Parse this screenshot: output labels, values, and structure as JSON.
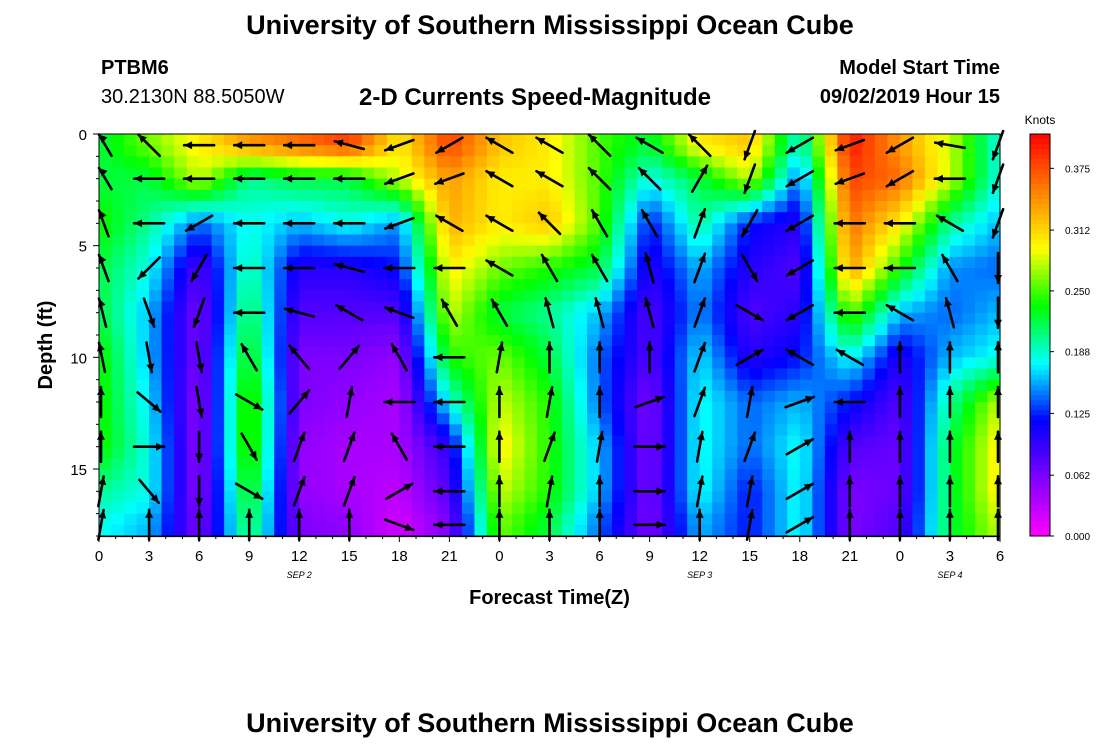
{
  "header": {
    "title_top": "University of Southern Mississippi Ocean Cube",
    "title_bottom": "University of Southern Mississippi Ocean Cube",
    "station_id": "PTBM6",
    "station_location": "30.2130N 88.5050W",
    "chart_title": "2-D Currents Speed-Magnitude",
    "model_start_label": "Model Start Time",
    "model_start_value": "09/02/2019 Hour 15"
  },
  "chart_data": {
    "type": "heatmap",
    "title": "2-D Currents Speed-Magnitude",
    "xlabel": "Forecast Time(Z)",
    "ylabel": "Depth (ft)",
    "x_tick_labels": [
      "0",
      "3",
      "6",
      "9",
      "12",
      "15",
      "18",
      "21",
      "0",
      "3",
      "6",
      "9",
      "12",
      "15",
      "18",
      "21",
      "0",
      "3",
      "6"
    ],
    "x_range_hours": [
      0,
      54
    ],
    "date_labels": [
      {
        "text": "SEP 2",
        "hour": 12
      },
      {
        "text": "SEP 3",
        "hour": 36
      },
      {
        "text": "SEP 4",
        "hour": 51
      }
    ],
    "y_ticks": [
      0,
      5,
      10,
      15
    ],
    "y_range": [
      0,
      18
    ],
    "y_inverted": true,
    "colorbar": {
      "label": "Knots",
      "ticks": [
        0.0,
        0.062,
        0.125,
        0.188,
        0.25,
        0.312,
        0.375
      ],
      "tick_labels": [
        "0.000",
        "0.062",
        "0.125",
        "0.188",
        "0.250",
        "0.312",
        "0.375"
      ],
      "range": [
        0.0,
        0.41
      ],
      "colors": [
        "#ff00ff",
        "#8000ff",
        "#0000ff",
        "#00ffff",
        "#00ff00",
        "#ffff00",
        "#ff8000",
        "#ff0000"
      ]
    },
    "depth_levels": [
      0.5,
      2,
      4,
      6,
      8,
      10,
      12,
      14,
      16,
      17.5
    ],
    "time_steps_hours": [
      0,
      3,
      6,
      9,
      12,
      15,
      18,
      21,
      24,
      27,
      30,
      33,
      36,
      39,
      42,
      45,
      48,
      51,
      54
    ],
    "speed_knots": [
      [
        0.22,
        0.26,
        0.3,
        0.34,
        0.36,
        0.38,
        0.3,
        0.38,
        0.32,
        0.3,
        0.25,
        0.22,
        0.3,
        0.32,
        0.18,
        0.4,
        0.34,
        0.28,
        0.18
      ],
      [
        0.22,
        0.22,
        0.28,
        0.2,
        0.22,
        0.22,
        0.28,
        0.34,
        0.3,
        0.3,
        0.25,
        0.18,
        0.22,
        0.28,
        0.14,
        0.38,
        0.36,
        0.28,
        0.18
      ],
      [
        0.24,
        0.2,
        0.14,
        0.18,
        0.16,
        0.18,
        0.15,
        0.33,
        0.3,
        0.32,
        0.25,
        0.12,
        0.2,
        0.12,
        0.1,
        0.36,
        0.3,
        0.2,
        0.16
      ],
      [
        0.22,
        0.18,
        0.08,
        0.2,
        0.1,
        0.1,
        0.12,
        0.3,
        0.26,
        0.24,
        0.22,
        0.1,
        0.16,
        0.1,
        0.08,
        0.34,
        0.24,
        0.15,
        0.14
      ],
      [
        0.22,
        0.16,
        0.06,
        0.22,
        0.08,
        0.08,
        0.08,
        0.28,
        0.22,
        0.2,
        0.16,
        0.08,
        0.15,
        0.08,
        0.1,
        0.26,
        0.16,
        0.14,
        0.16
      ],
      [
        0.24,
        0.16,
        0.06,
        0.24,
        0.06,
        0.06,
        0.05,
        0.24,
        0.26,
        0.22,
        0.14,
        0.08,
        0.17,
        0.1,
        0.12,
        0.18,
        0.1,
        0.16,
        0.18
      ],
      [
        0.24,
        0.17,
        0.05,
        0.26,
        0.06,
        0.05,
        0.04,
        0.18,
        0.28,
        0.24,
        0.14,
        0.06,
        0.18,
        0.14,
        0.16,
        0.12,
        0.08,
        0.2,
        0.28
      ],
      [
        0.24,
        0.18,
        0.05,
        0.26,
        0.05,
        0.04,
        0.04,
        0.1,
        0.3,
        0.24,
        0.16,
        0.06,
        0.18,
        0.14,
        0.18,
        0.08,
        0.07,
        0.22,
        0.3
      ],
      [
        0.2,
        0.18,
        0.05,
        0.24,
        0.05,
        0.04,
        0.03,
        0.08,
        0.28,
        0.24,
        0.16,
        0.06,
        0.18,
        0.12,
        0.18,
        0.06,
        0.07,
        0.22,
        0.3
      ],
      [
        0.18,
        0.16,
        0.06,
        0.22,
        0.06,
        0.05,
        0.02,
        0.06,
        0.26,
        0.22,
        0.14,
        0.06,
        0.16,
        0.12,
        0.18,
        0.06,
        0.08,
        0.22,
        0.28
      ]
    ],
    "current_direction_deg": [
      [
        315,
        315,
        270,
        270,
        270,
        285,
        250,
        240,
        300,
        300,
        315,
        300,
        315,
        200,
        240,
        250,
        240,
        280,
        200
      ],
      [
        315,
        270,
        270,
        270,
        270,
        270,
        250,
        250,
        300,
        300,
        315,
        315,
        30,
        200,
        240,
        250,
        240,
        270,
        200
      ],
      [
        330,
        270,
        240,
        270,
        270,
        270,
        250,
        300,
        300,
        315,
        330,
        330,
        20,
        210,
        240,
        270,
        270,
        300,
        200
      ],
      [
        330,
        225,
        210,
        270,
        270,
        285,
        270,
        270,
        300,
        330,
        330,
        345,
        20,
        150,
        240,
        270,
        270,
        330,
        180
      ],
      [
        340,
        160,
        200,
        270,
        285,
        300,
        290,
        330,
        330,
        345,
        345,
        345,
        20,
        120,
        240,
        270,
        300,
        345,
        180
      ],
      [
        345,
        170,
        170,
        330,
        320,
        40,
        330,
        270,
        10,
        0,
        0,
        0,
        20,
        60,
        300,
        300,
        0,
        0,
        0
      ],
      [
        0,
        130,
        170,
        120,
        40,
        10,
        270,
        270,
        0,
        10,
        0,
        70,
        20,
        10,
        70,
        270,
        0,
        0,
        0
      ],
      [
        0,
        90,
        180,
        150,
        20,
        20,
        330,
        270,
        0,
        20,
        10,
        90,
        10,
        20,
        60,
        0,
        0,
        0,
        0
      ],
      [
        10,
        140,
        180,
        120,
        20,
        20,
        60,
        270,
        0,
        10,
        0,
        90,
        10,
        10,
        60,
        0,
        0,
        0,
        0
      ],
      [
        10,
        0,
        0,
        0,
        0,
        0,
        110,
        270,
        0,
        0,
        0,
        90,
        0,
        10,
        60,
        0,
        0,
        0,
        0
      ]
    ]
  }
}
